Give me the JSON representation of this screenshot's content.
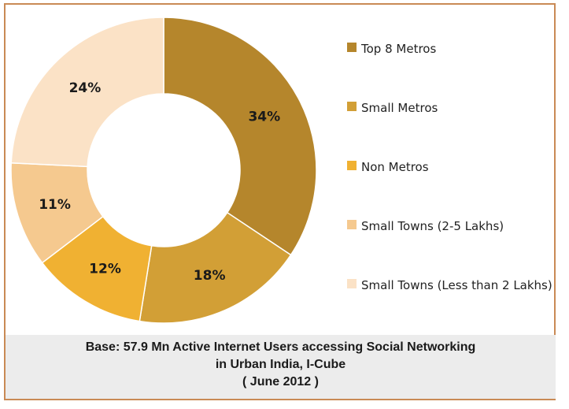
{
  "chart_data": {
    "type": "pie",
    "variant": "donut",
    "categories": [
      "Top 8 Metros",
      "Small Metros",
      "Non Metros",
      "Small Towns (2-5 Lakhs)",
      "Small Towns (Less than 2 Lakhs)"
    ],
    "values": [
      34,
      18,
      12,
      11,
      24
    ],
    "labels": [
      "34%",
      "18%",
      "12%",
      "11%",
      "24%"
    ],
    "colors": [
      "#b5862c",
      "#d29f36",
      "#f0b132",
      "#f5c98f",
      "#fbe2c6"
    ],
    "legend_position": "right",
    "caption": [
      "Base: 57.9 Mn Active Internet Users accessing Social Networking",
      "in Urban India, I-Cube",
      "( June 2012 )"
    ]
  }
}
